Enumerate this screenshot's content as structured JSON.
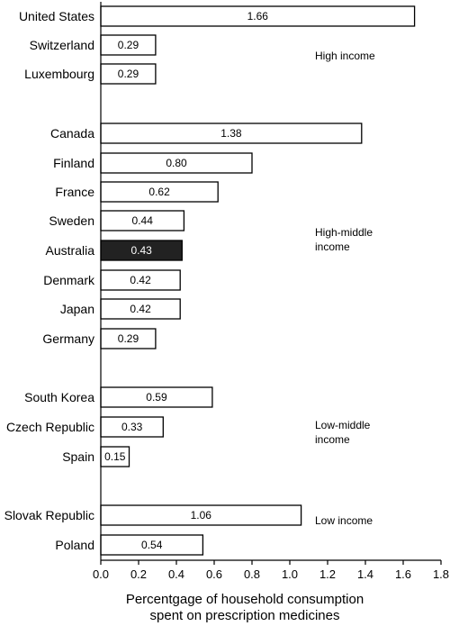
{
  "chart_data": {
    "type": "bar",
    "orientation": "horizontal",
    "categories": [
      "United States",
      "Switzerland",
      "Luxembourg",
      "Canada",
      "Finland",
      "France",
      "Sweden",
      "Australia",
      "Denmark",
      "Japan",
      "Germany",
      "South Korea",
      "Czech Republic",
      "Spain",
      "Slovak Republic",
      "Poland"
    ],
    "values": [
      1.66,
      0.29,
      0.29,
      1.38,
      0.8,
      0.62,
      0.44,
      0.43,
      0.42,
      0.42,
      0.29,
      0.59,
      0.33,
      0.15,
      1.06,
      0.54
    ],
    "value_labels": [
      "1.66",
      "0.29",
      "0.29",
      "1.38",
      "0.80",
      "0.62",
      "0.44",
      "0.43",
      "0.42",
      "0.42",
      "0.29",
      "0.59",
      "0.33",
      "0.15",
      "1.06",
      "0.54"
    ],
    "highlight": "Australia",
    "colors": {
      "bar": "#ffffff",
      "highlight": "#222222",
      "outline": "#000000"
    },
    "groups": [
      {
        "label_lines": [
          "High income"
        ],
        "categories": [
          "United States",
          "Switzerland",
          "Luxembourg"
        ]
      },
      {
        "label_lines": [
          "High-middle",
          "income"
        ],
        "categories": [
          "Canada",
          "Finland",
          "France",
          "Sweden",
          "Australia",
          "Denmark",
          "Japan",
          "Germany"
        ]
      },
      {
        "label_lines": [
          "Low-middle",
          "income"
        ],
        "categories": [
          "South Korea",
          "Czech Republic",
          "Spain"
        ]
      },
      {
        "label_lines": [
          "Low income"
        ],
        "categories": [
          "Slovak Republic",
          "Poland"
        ]
      }
    ],
    "xlim": [
      0,
      1.8
    ],
    "xticks": [
      "0.0",
      "0.2",
      "0.4",
      "0.6",
      "0.8",
      "1.0",
      "1.2",
      "1.4",
      "1.6",
      "1.8"
    ],
    "xlabel_lines": [
      "Percentgage of household consumption",
      "spent on prescription medicines"
    ],
    "ylabel": "",
    "title": "",
    "grid": false
  }
}
